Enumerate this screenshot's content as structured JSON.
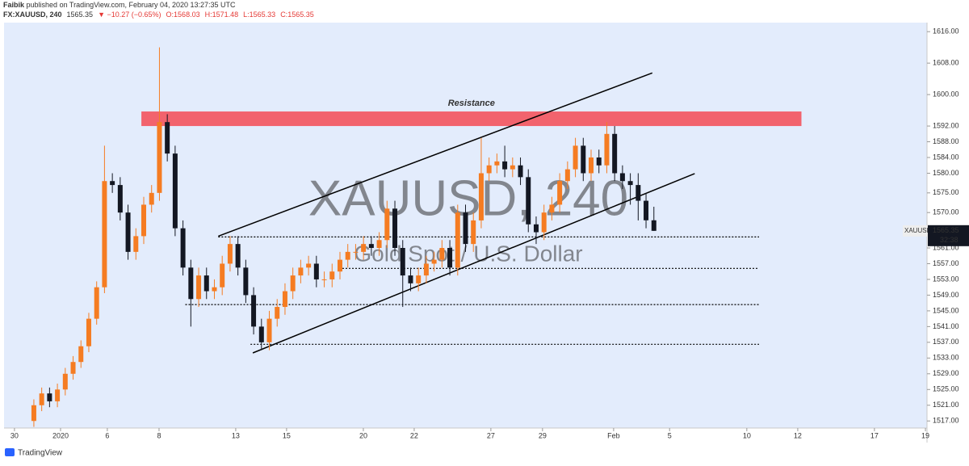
{
  "header": {
    "author": "Faibik",
    "published": "published on TradingView.com, February 04, 2020 13:27:35 UTC",
    "symbol": "FX:XAUUSD, 240",
    "last": "1565.35",
    "change": "▼ −10.27 (−0.65%)",
    "ohlc": [
      "O:1568.03",
      "H:1571.48",
      "L:1565.33",
      "C:1565.35"
    ]
  },
  "chart_data": {
    "type": "candlestick",
    "watermark": "XAUUSD, 240",
    "watermark_sub": "Gold Spot / U.S. Dollar",
    "colors": {
      "up": "#f57c22",
      "down": "#131722"
    },
    "open": [
      1517,
      1521,
      1524,
      1522,
      1525,
      1529,
      1532,
      1536,
      1543,
      1551,
      1578,
      1577,
      1570,
      1560,
      1564,
      1572,
      1575,
      1593,
      1585,
      1566,
      1556,
      1548,
      1554,
      1550,
      1551,
      1557,
      1562,
      1556,
      1549,
      1541,
      1537,
      1543,
      1546,
      1550,
      1554,
      1556,
      1557,
      1553,
      1553,
      1555,
      1558,
      1560,
      1560,
      1562,
      1561,
      1563,
      1571,
      1561,
      1554,
      1552,
      1554,
      1557,
      1558,
      1561,
      1556,
      1570,
      1562,
      1568,
      1580,
      1582,
      1583,
      1581,
      1582,
      1579,
      1567,
      1565,
      1570,
      1572,
      1578,
      1581,
      1587,
      1580,
      1584,
      1582,
      1590,
      1580,
      1578,
      1577,
      1573,
      1568.03
    ],
    "high": [
      1522.5,
      1525.5,
      1525.5,
      1526.5,
      1530.5,
      1533.5,
      1537.5,
      1544.5,
      1552.5,
      1587,
      1580,
      1579,
      1572,
      1566,
      1574,
      1577,
      1612,
      1595,
      1587,
      1568,
      1558,
      1556,
      1556,
      1553,
      1559,
      1564,
      1564,
      1558,
      1551,
      1543,
      1545,
      1548,
      1552,
      1556,
      1558,
      1559,
      1559,
      1555,
      1557,
      1560,
      1562,
      1562,
      1564,
      1564,
      1565,
      1573,
      1573,
      1563,
      1556,
      1556,
      1559,
      1560,
      1563,
      1563,
      1572,
      1572,
      1570,
      1589,
      1584,
      1585,
      1587,
      1584,
      1584,
      1581,
      1569,
      1572,
      1574,
      1580,
      1583,
      1589,
      1589,
      1586,
      1586,
      1593,
      1592,
      1582,
      1580,
      1580,
      1575,
      1571.48
    ],
    "low": [
      1515.5,
      1519.5,
      1520.5,
      1520.5,
      1523.5,
      1527.5,
      1530.5,
      1534.5,
      1541.5,
      1549.5,
      1575,
      1568,
      1558,
      1558,
      1562,
      1570,
      1573,
      1583,
      1564,
      1554,
      1541,
      1546,
      1548,
      1548,
      1549,
      1555,
      1554,
      1547,
      1539,
      1535,
      1535,
      1541,
      1544,
      1548,
      1552,
      1554,
      1551,
      1551,
      1551,
      1553,
      1556,
      1558,
      1558,
      1559,
      1559,
      1561,
      1559,
      1546,
      1550,
      1550,
      1552,
      1555,
      1556,
      1554,
      1554,
      1560,
      1560,
      1566,
      1578,
      1580,
      1579,
      1579,
      1577,
      1565,
      1562,
      1563,
      1568,
      1570,
      1576,
      1579,
      1578,
      1578,
      1580,
      1580,
      1578,
      1576,
      1572,
      1568,
      1566,
      1565.33
    ],
    "close": [
      1521,
      1524,
      1522,
      1525,
      1529,
      1532,
      1536,
      1543,
      1551,
      1578,
      1577,
      1570,
      1560,
      1564,
      1572,
      1575,
      1593,
      1585,
      1566,
      1556,
      1548,
      1554,
      1550,
      1551,
      1557,
      1562,
      1556,
      1549,
      1541,
      1537,
      1543,
      1546,
      1550,
      1554,
      1556,
      1557,
      1553,
      1553,
      1555,
      1558,
      1560,
      1560,
      1562,
      1561,
      1563,
      1571,
      1561,
      1554,
      1552,
      1554,
      1557,
      1558,
      1561,
      1556,
      1570,
      1562,
      1568,
      1580,
      1582,
      1583,
      1581,
      1582,
      1579,
      1567,
      1565,
      1570,
      1572,
      1578,
      1581,
      1587,
      1580,
      1584,
      1582,
      1590,
      1580,
      1578,
      1577,
      1573,
      1568.03,
      1565.35
    ],
    "xlim": [
      -3.8,
      113.8
    ],
    "xticks": [
      {
        "value": -2.47,
        "label": "30"
      },
      {
        "value": 3.4,
        "label": "2020"
      },
      {
        "value": 9.36,
        "label": "6"
      },
      {
        "value": 15.95,
        "label": "8"
      },
      {
        "value": 25.72,
        "label": "13"
      },
      {
        "value": 32.2,
        "label": "15"
      },
      {
        "value": 41.98,
        "label": "20"
      },
      {
        "value": 48.46,
        "label": "22"
      },
      {
        "value": 58.23,
        "label": "27"
      },
      {
        "value": 64.81,
        "label": "29"
      },
      {
        "value": 73.87,
        "label": "Feb"
      },
      {
        "value": 81.0,
        "label": "5"
      },
      {
        "value": 90.84,
        "label": "10"
      },
      {
        "value": 97.33,
        "label": "12"
      },
      {
        "value": 107.1,
        "label": "17"
      },
      {
        "value": 113.6,
        "label": "19"
      }
    ],
    "ylim": [
      1515.2,
      1618.3
    ],
    "yticks": [
      {
        "value": 1616,
        "label": "1616.00"
      },
      {
        "value": 1608,
        "label": "1608.00"
      },
      {
        "value": 1600,
        "label": "1600.00"
      },
      {
        "value": 1592,
        "label": "1592.00"
      },
      {
        "value": 1588,
        "label": "1588.00"
      },
      {
        "value": 1584,
        "label": "1584.00"
      },
      {
        "value": 1580,
        "label": "1580.00"
      },
      {
        "value": 1575,
        "label": "1575.00"
      },
      {
        "value": 1570,
        "label": "1570.00"
      },
      {
        "value": 1561,
        "label": "1561.00"
      },
      {
        "value": 1557,
        "label": "1557.00"
      },
      {
        "value": 1553,
        "label": "1553.00"
      },
      {
        "value": 1549,
        "label": "1549.00"
      },
      {
        "value": 1545,
        "label": "1545.00"
      },
      {
        "value": 1541,
        "label": "1541.00"
      },
      {
        "value": 1537,
        "label": "1537.00"
      },
      {
        "value": 1533,
        "label": "1533.00"
      },
      {
        "value": 1529,
        "label": "1529.00"
      },
      {
        "value": 1525,
        "label": "1525.00"
      },
      {
        "value": 1521,
        "label": "1521.00"
      },
      {
        "value": 1517,
        "label": "1517.00"
      }
    ],
    "zone": {
      "label": "Resistance",
      "range": [
        1592,
        1595.7
      ],
      "x_range": [
        13.7,
        97.8
      ],
      "color": "#f2636d"
    },
    "lines": [
      {
        "from": [
          23.5,
          1564
        ],
        "to": [
          78.8,
          1605.5
        ],
        "style": "solid"
      },
      {
        "from": [
          27.9,
          1534.3
        ],
        "to": [
          84.2,
          1579.9
        ],
        "style": "solid"
      },
      {
        "from": [
          23.5,
          1563.8
        ],
        "to": [
          92.4,
          1563.8
        ],
        "style": "dotted"
      },
      {
        "from": [
          38.9,
          1555.8
        ],
        "to": [
          92.4,
          1555.8
        ],
        "style": "dotted"
      },
      {
        "from": [
          19.3,
          1546.6
        ],
        "to": [
          92.4,
          1546.6
        ],
        "style": "dotted"
      },
      {
        "from": [
          27.6,
          1536.5
        ],
        "to": [
          92.4,
          1536.5
        ],
        "style": "dotted"
      }
    ],
    "symbol_label": "XAUUSD",
    "last_price": 1565.35,
    "countdown": "32:38"
  },
  "footer": {
    "brand": "TradingView"
  }
}
